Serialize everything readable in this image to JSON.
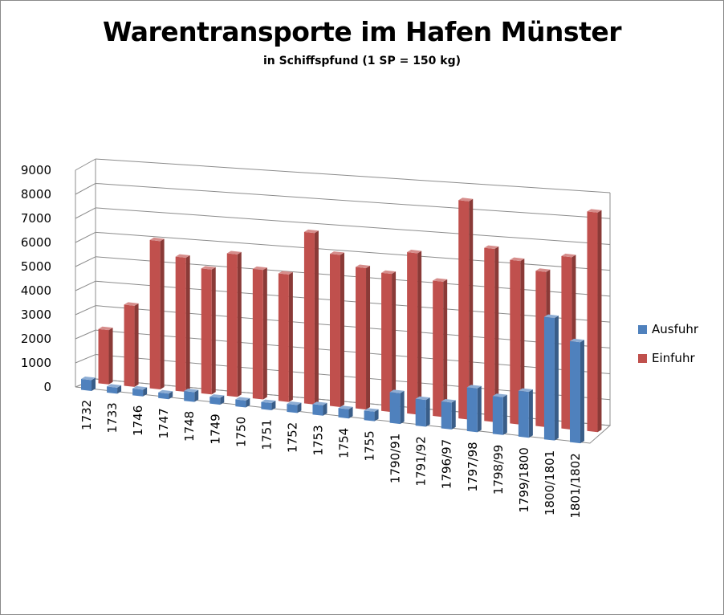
{
  "chart_data": {
    "type": "bar",
    "title": "Warentransporte im Hafen Münster",
    "subtitle": "in Schiffspfund (1 SP = 150 kg)",
    "xlabel": "",
    "ylabel": "",
    "ylim": [
      0,
      9000
    ],
    "yticks": [
      0,
      1000,
      2000,
      3000,
      4000,
      5000,
      6000,
      7000,
      8000,
      9000
    ],
    "grid": true,
    "legend_position": "right",
    "categories": [
      "1732",
      "1733",
      "1746",
      "1747",
      "1748",
      "1749",
      "1750",
      "1751",
      "1752",
      "1753",
      "1754",
      "1755",
      "1790/91",
      "1791/92",
      "1796/97",
      "1797/98",
      "1798/99",
      "1799/1800",
      "1800/1801",
      "1801/1802"
    ],
    "series": [
      {
        "name": "Ausfuhr",
        "color": "#4f81bd",
        "values": [
          450,
          250,
          280,
          230,
          400,
          280,
          280,
          290,
          320,
          420,
          370,
          380,
          1220,
          1060,
          1060,
          1720,
          1480,
          1790,
          4760,
          3910
        ]
      },
      {
        "name": "Einfuhr",
        "color": "#c0504d",
        "values": [
          2250,
          3350,
          6100,
          5500,
          5100,
          5800,
          5250,
          5150,
          6900,
          6100,
          5650,
          5500,
          6400,
          5350,
          8600,
          6800,
          6400,
          6050,
          6700,
          8500
        ]
      }
    ]
  }
}
